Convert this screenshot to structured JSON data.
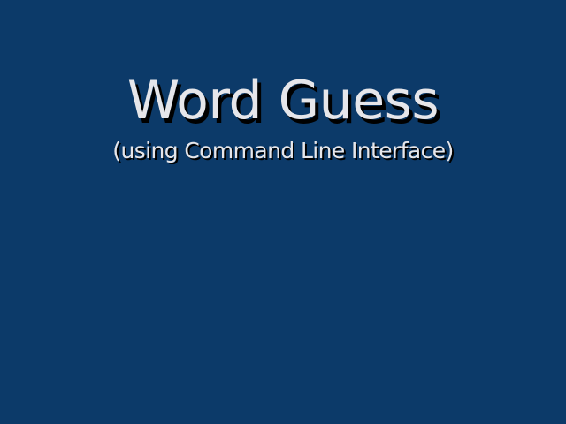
{
  "slide": {
    "title": "Word Guess",
    "subtitle": "(using Command Line Interface)",
    "colors": {
      "background": "#0c3a69",
      "text": "#e6e6ea",
      "shadow": "#000000"
    }
  }
}
